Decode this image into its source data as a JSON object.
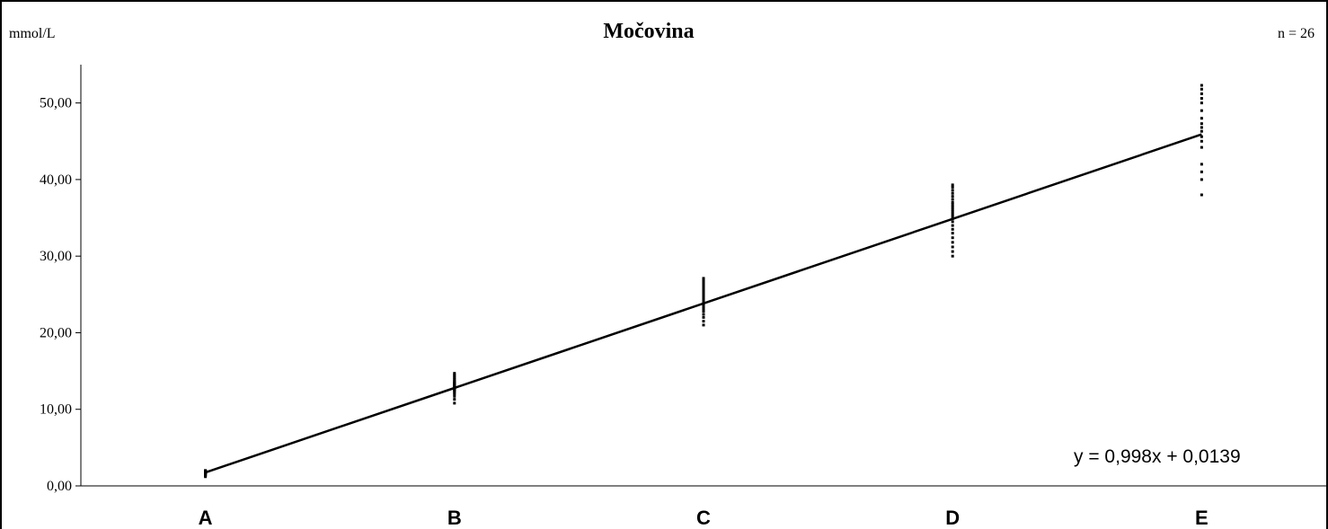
{
  "chart_data": {
    "type": "scatter",
    "title": "Močovina",
    "unit_label": "mmol/L",
    "n_label": "n = 26",
    "equation": "y = 0,998x + 0,0139",
    "categories": [
      "A",
      "B",
      "C",
      "D",
      "E"
    ],
    "ylim": [
      0,
      55
    ],
    "yticks": [
      0,
      10,
      20,
      30,
      40,
      50
    ],
    "ytick_labels": [
      "0,00",
      "10,00",
      "20,00",
      "30,00",
      "40,00",
      "50,00"
    ],
    "grid": false,
    "colors": {
      "points": "#000000",
      "line": "#000000"
    },
    "trendline": {
      "slope": 0.998,
      "intercept": 0.0139,
      "x_values": [
        1.75,
        45.9
      ]
    },
    "series": [
      {
        "category": "A",
        "values": [
          1.2,
          1.3,
          1.4,
          1.5,
          1.5,
          1.6,
          1.6,
          1.7,
          1.7,
          1.7,
          1.8,
          1.8,
          1.8,
          1.8,
          1.9,
          1.9,
          1.9,
          1.9,
          2.0,
          2.0,
          2.0
        ]
      },
      {
        "category": "B",
        "values": [
          10.8,
          11.3,
          11.7,
          12.0,
          12.2,
          12.4,
          12.5,
          12.6,
          12.7,
          12.8,
          12.9,
          13.0,
          13.1,
          13.2,
          13.3,
          13.4,
          13.5,
          13.6,
          13.7,
          13.9,
          14.1,
          14.3,
          14.5,
          14.7
        ]
      },
      {
        "category": "C",
        "values": [
          21.0,
          21.5,
          22.0,
          22.4,
          22.8,
          23.1,
          23.4,
          23.6,
          23.8,
          24.0,
          24.2,
          24.4,
          24.6,
          24.8,
          25.0,
          25.3,
          25.6,
          25.9,
          26.2,
          26.5,
          26.8,
          27.1
        ]
      },
      {
        "category": "D",
        "values": [
          30.0,
          30.6,
          31.2,
          31.8,
          32.4,
          33.0,
          33.5,
          34.0,
          34.5,
          34.9,
          35.2,
          35.5,
          35.8,
          36.1,
          36.4,
          36.7,
          37.0,
          37.4,
          37.8,
          38.2,
          38.6,
          39.0,
          39.3
        ]
      },
      {
        "category": "E",
        "values": [
          38.0,
          40.0,
          41.0,
          42.0,
          44.2,
          45.0,
          45.6,
          46.3,
          46.8,
          47.3,
          48.0,
          49.0,
          50.0,
          50.6,
          51.2,
          51.8,
          52.3
        ]
      }
    ]
  }
}
